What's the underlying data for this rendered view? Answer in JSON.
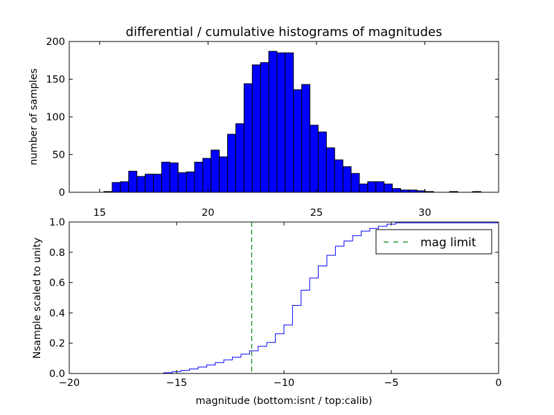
{
  "chart_data": [
    {
      "type": "bar",
      "title": "differential / cumulative histograms of magnitudes",
      "xlabel": "",
      "ylabel": "number of samples",
      "xlim": [
        13.6,
        33.4
      ],
      "ylim": [
        0,
        200
      ],
      "xticks": [
        "15",
        "20",
        "25",
        "30"
      ],
      "yticks": [
        "0",
        "50",
        "100",
        "150",
        "200"
      ],
      "bar_color": "#0000ff",
      "bin_width": 0.38,
      "bins": [
        {
          "x": 15.2,
          "y": 1
        },
        {
          "x": 15.58,
          "y": 13
        },
        {
          "x": 15.96,
          "y": 14
        },
        {
          "x": 16.34,
          "y": 28
        },
        {
          "x": 16.72,
          "y": 21
        },
        {
          "x": 17.1,
          "y": 24
        },
        {
          "x": 17.48,
          "y": 24
        },
        {
          "x": 17.86,
          "y": 40
        },
        {
          "x": 18.24,
          "y": 39
        },
        {
          "x": 18.62,
          "y": 26
        },
        {
          "x": 19.0,
          "y": 27
        },
        {
          "x": 19.38,
          "y": 40
        },
        {
          "x": 19.76,
          "y": 45
        },
        {
          "x": 20.14,
          "y": 56
        },
        {
          "x": 20.52,
          "y": 47
        },
        {
          "x": 20.9,
          "y": 77
        },
        {
          "x": 21.28,
          "y": 91
        },
        {
          "x": 21.66,
          "y": 144
        },
        {
          "x": 22.04,
          "y": 169
        },
        {
          "x": 22.42,
          "y": 172
        },
        {
          "x": 22.8,
          "y": 187
        },
        {
          "x": 23.18,
          "y": 185
        },
        {
          "x": 23.56,
          "y": 185
        },
        {
          "x": 23.94,
          "y": 136
        },
        {
          "x": 24.32,
          "y": 143
        },
        {
          "x": 24.7,
          "y": 89
        },
        {
          "x": 25.08,
          "y": 80
        },
        {
          "x": 25.46,
          "y": 59
        },
        {
          "x": 25.84,
          "y": 43
        },
        {
          "x": 26.22,
          "y": 34
        },
        {
          "x": 26.6,
          "y": 25
        },
        {
          "x": 26.98,
          "y": 11
        },
        {
          "x": 27.36,
          "y": 14
        },
        {
          "x": 27.74,
          "y": 14
        },
        {
          "x": 28.12,
          "y": 11
        },
        {
          "x": 28.5,
          "y": 5
        },
        {
          "x": 28.88,
          "y": 3
        },
        {
          "x": 29.26,
          "y": 3
        },
        {
          "x": 29.64,
          "y": 2
        },
        {
          "x": 30.02,
          "y": 1
        },
        {
          "x": 31.14,
          "y": 1
        },
        {
          "x": 32.2,
          "y": 1
        }
      ]
    },
    {
      "type": "line",
      "drawstyle": "steps",
      "title": "",
      "xlabel": "magnitude (bottom:isnt / top:calib)",
      "ylabel": "Nsample scaled to unity",
      "xlim": [
        -20,
        0
      ],
      "ylim": [
        0,
        1
      ],
      "xticks": [
        "−20",
        "−15",
        "−10",
        "−5",
        "0"
      ],
      "yticks": [
        "0.0",
        "0.2",
        "0.4",
        "0.6",
        "0.8",
        "1.0"
      ],
      "line_color": "#0000ff",
      "cumulative": {
        "x": [
          -20,
          -15.6,
          -15.2,
          -14.8,
          -14.4,
          -14.0,
          -13.6,
          -13.2,
          -12.8,
          -12.4,
          -12.0,
          -11.6,
          -11.2,
          -10.8,
          -10.4,
          -10.0,
          -9.6,
          -9.2,
          -8.8,
          -8.4,
          -8.0,
          -7.6,
          -7.2,
          -6.8,
          -6.4,
          -6.0,
          -5.6,
          -5.2,
          -4.8,
          -0.05
        ],
        "y": [
          0.0,
          0.005,
          0.012,
          0.02,
          0.03,
          0.042,
          0.056,
          0.072,
          0.09,
          0.108,
          0.128,
          0.15,
          0.18,
          0.205,
          0.262,
          0.32,
          0.45,
          0.55,
          0.63,
          0.71,
          0.78,
          0.84,
          0.875,
          0.91,
          0.94,
          0.958,
          0.972,
          0.986,
          0.995,
          1.0
        ]
      },
      "series": [
        {
          "name": "mag limit",
          "style": "dashed",
          "color": "#008000",
          "x": -11.5
        }
      ],
      "legend": {
        "position": "top-right",
        "entries": [
          "mag limit"
        ]
      }
    }
  ]
}
